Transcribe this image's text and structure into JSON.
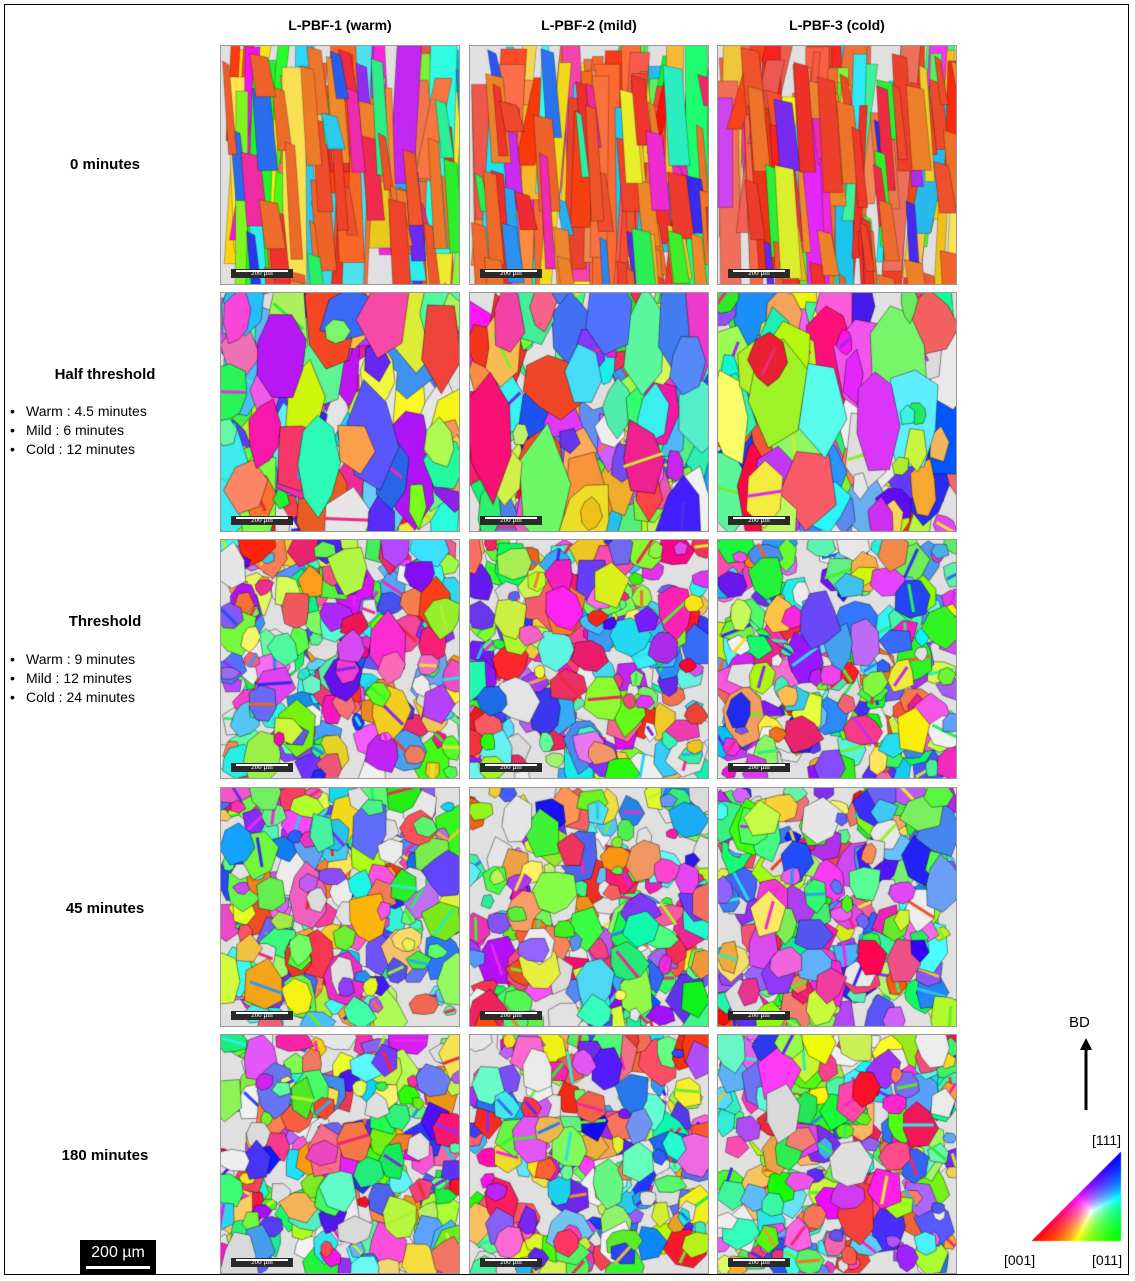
{
  "columns": [
    "L-PBF-1 (warm)",
    "L-PBF-2 (mild)",
    "L-PBF-3 (cold)"
  ],
  "rows": [
    {
      "label": "0 minutes",
      "details": []
    },
    {
      "label": "Half threshold",
      "details": [
        "Warm : 4.5 minutes",
        "Mild : 6 minutes",
        "Cold : 12 minutes"
      ]
    },
    {
      "label": "Threshold",
      "details": [
        "Warm : 9 minutes",
        "Mild : 12 minutes",
        "Cold : 24 minutes"
      ]
    },
    {
      "label": "45 minutes",
      "details": []
    },
    {
      "label": "180 minutes",
      "details": []
    }
  ],
  "panel_scale_label": "200 µm",
  "scale_bar_label": "200 µm",
  "build_direction_label": "BD",
  "ipf_labels": {
    "top": "[111]",
    "left": "[001]",
    "right": "[011]"
  },
  "ipf_colors": {
    "001": "#ff0000",
    "011": "#00ff00",
    "111": "#0000ff"
  }
}
